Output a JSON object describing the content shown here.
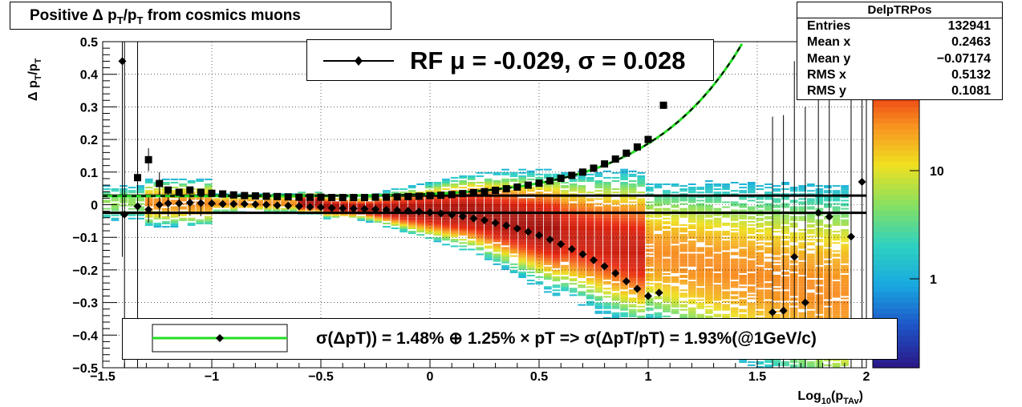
{
  "title": "Positive Δ p_T/p_T from cosmics muons",
  "title_parts": {
    "prefix": "Positive Δ p",
    "sub1": "T",
    "mid": "/p",
    "sub2": "T",
    "suffix": " from cosmics muons"
  },
  "stats": {
    "name": "DelpTRPos",
    "rows": [
      {
        "label": "Entries",
        "value": "132941"
      },
      {
        "label": "Mean x",
        "value": "0.2463"
      },
      {
        "label": "Mean y",
        "value": "−0.07174"
      },
      {
        "label": "RMS x",
        "value": "0.5132"
      },
      {
        "label": "RMS y",
        "value": "0.1081"
      }
    ]
  },
  "legend_fit": "RF μ = -0.029, σ =   0.028",
  "legend_resolution": "σ(ΔpT)) =  1.48% ⊕  1.25% × pT => σ(ΔpT/pT) =  1.93%(@1GeV/c)",
  "colors": {
    "profile_markers": "#000000",
    "fit_curve": "#22dd22",
    "palette": [
      "#2a1a8a",
      "#1e55c8",
      "#18a8e0",
      "#2ed2c0",
      "#88e060",
      "#f0e020",
      "#f89020",
      "#e82810",
      "#a8140e"
    ]
  },
  "chart_data": {
    "type": "heatmap",
    "xlabel": "Log10(pTAv)",
    "ylabel": "Δ pT/pT",
    "xlim": [
      -1.5,
      2
    ],
    "ylim": [
      -0.5,
      0.5
    ],
    "x_ticks": [
      "−1.5",
      "−1",
      "−0.5",
      "0",
      "0.5",
      "1",
      "1.5",
      "2"
    ],
    "y_ticks": [
      "−0.5",
      "−0.4",
      "−0.3",
      "−0.2",
      "−0.1",
      "0",
      "0.1",
      "0.2",
      "0.3",
      "0.4",
      "0.5"
    ],
    "colorbar_scale": "log",
    "colorbar_ticks": [
      "1",
      "10"
    ],
    "grid": true,
    "mean_profile": [
      {
        "x": -1.4,
        "y": -0.03
      },
      {
        "x": -1.34,
        "y": -0.005
      },
      {
        "x": -1.29,
        "y": -0.015
      },
      {
        "x": -1.24,
        "y": 0.0
      },
      {
        "x": -1.2,
        "y": 0.004
      },
      {
        "x": -1.15,
        "y": 0.004
      },
      {
        "x": -1.1,
        "y": 0.006
      },
      {
        "x": -1.05,
        "y": 0.005
      },
      {
        "x": -1.0,
        "y": 0.004
      },
      {
        "x": -0.95,
        "y": 0.002
      },
      {
        "x": -0.9,
        "y": 0.002
      },
      {
        "x": -0.85,
        "y": 0.002
      },
      {
        "x": -0.8,
        "y": 0.001
      },
      {
        "x": -0.75,
        "y": 0.0
      },
      {
        "x": -0.7,
        "y": -0.002
      },
      {
        "x": -0.65,
        "y": -0.003
      },
      {
        "x": -0.6,
        "y": -0.005
      },
      {
        "x": -0.55,
        "y": -0.007
      },
      {
        "x": -0.5,
        "y": -0.008
      },
      {
        "x": -0.45,
        "y": -0.01
      },
      {
        "x": -0.4,
        "y": -0.011
      },
      {
        "x": -0.35,
        "y": -0.012
      },
      {
        "x": -0.3,
        "y": -0.013
      },
      {
        "x": -0.25,
        "y": -0.014
      },
      {
        "x": -0.2,
        "y": -0.016
      },
      {
        "x": -0.15,
        "y": -0.017
      },
      {
        "x": -0.1,
        "y": -0.019
      },
      {
        "x": -0.05,
        "y": -0.021
      },
      {
        "x": 0.0,
        "y": -0.024
      },
      {
        "x": 0.05,
        "y": -0.027
      },
      {
        "x": 0.1,
        "y": -0.031
      },
      {
        "x": 0.15,
        "y": -0.036
      },
      {
        "x": 0.2,
        "y": -0.042
      },
      {
        "x": 0.25,
        "y": -0.048
      },
      {
        "x": 0.3,
        "y": -0.056
      },
      {
        "x": 0.35,
        "y": -0.064
      },
      {
        "x": 0.4,
        "y": -0.073
      },
      {
        "x": 0.45,
        "y": -0.083
      },
      {
        "x": 0.5,
        "y": -0.094
      },
      {
        "x": 0.55,
        "y": -0.107
      },
      {
        "x": 0.6,
        "y": -0.121
      },
      {
        "x": 0.65,
        "y": -0.136
      },
      {
        "x": 0.7,
        "y": -0.152
      },
      {
        "x": 0.75,
        "y": -0.17
      },
      {
        "x": 0.8,
        "y": -0.189
      },
      {
        "x": 0.85,
        "y": -0.21
      },
      {
        "x": 0.9,
        "y": -0.235
      },
      {
        "x": 0.95,
        "y": -0.258
      },
      {
        "x": 1.0,
        "y": -0.28
      },
      {
        "x": 1.05,
        "y": -0.27
      },
      {
        "x": -1.41,
        "y": 0.44
      },
      {
        "x": 1.57,
        "y": -0.33
      },
      {
        "x": 1.62,
        "y": -0.325
      },
      {
        "x": 1.67,
        "y": -0.16
      },
      {
        "x": 1.72,
        "y": -0.3
      },
      {
        "x": 1.78,
        "y": -0.025
      },
      {
        "x": 1.83,
        "y": -0.037
      },
      {
        "x": 1.93,
        "y": -0.098
      },
      {
        "x": 1.98,
        "y": 0.07
      }
    ],
    "rms_profile": [
      {
        "x": -1.34,
        "y": 0.083
      },
      {
        "x": -1.29,
        "y": 0.138
      },
      {
        "x": -1.24,
        "y": 0.065
      },
      {
        "x": -1.2,
        "y": 0.045
      },
      {
        "x": -1.15,
        "y": 0.038
      },
      {
        "x": -1.1,
        "y": 0.045
      },
      {
        "x": -1.05,
        "y": 0.038
      },
      {
        "x": -1.0,
        "y": 0.035
      },
      {
        "x": -0.95,
        "y": 0.033
      },
      {
        "x": -0.9,
        "y": 0.03
      },
      {
        "x": -0.85,
        "y": 0.028
      },
      {
        "x": -0.8,
        "y": 0.027
      },
      {
        "x": -0.75,
        "y": 0.026
      },
      {
        "x": -0.7,
        "y": 0.025
      },
      {
        "x": -0.65,
        "y": 0.024
      },
      {
        "x": -0.6,
        "y": 0.023
      },
      {
        "x": -0.55,
        "y": 0.023
      },
      {
        "x": -0.5,
        "y": 0.023
      },
      {
        "x": -0.45,
        "y": 0.022
      },
      {
        "x": -0.4,
        "y": 0.022
      },
      {
        "x": -0.35,
        "y": 0.022
      },
      {
        "x": -0.3,
        "y": 0.022
      },
      {
        "x": -0.25,
        "y": 0.023
      },
      {
        "x": -0.2,
        "y": 0.023
      },
      {
        "x": -0.15,
        "y": 0.024
      },
      {
        "x": -0.1,
        "y": 0.025
      },
      {
        "x": -0.05,
        "y": 0.026
      },
      {
        "x": 0.0,
        "y": 0.028
      },
      {
        "x": 0.05,
        "y": 0.029
      },
      {
        "x": 0.1,
        "y": 0.031
      },
      {
        "x": 0.15,
        "y": 0.034
      },
      {
        "x": 0.2,
        "y": 0.037
      },
      {
        "x": 0.25,
        "y": 0.04
      },
      {
        "x": 0.3,
        "y": 0.044
      },
      {
        "x": 0.35,
        "y": 0.049
      },
      {
        "x": 0.4,
        "y": 0.054
      },
      {
        "x": 0.45,
        "y": 0.06
      },
      {
        "x": 0.5,
        "y": 0.066
      },
      {
        "x": 0.55,
        "y": 0.073
      },
      {
        "x": 0.6,
        "y": 0.081
      },
      {
        "x": 0.65,
        "y": 0.09
      },
      {
        "x": 0.7,
        "y": 0.1
      },
      {
        "x": 0.75,
        "y": 0.112
      },
      {
        "x": 0.8,
        "y": 0.125
      },
      {
        "x": 0.85,
        "y": 0.14
      },
      {
        "x": 0.9,
        "y": 0.158
      },
      {
        "x": 0.95,
        "y": 0.177
      },
      {
        "x": 1.0,
        "y": 0.2
      },
      {
        "x": 1.07,
        "y": 0.305
      }
    ],
    "reference_lines": [
      0.028,
      -0.025
    ],
    "resolution_fit": {
      "constant_pct": 1.48,
      "linear_pct": 1.25,
      "at_1GeV_pct": 1.93
    },
    "fit_mean": -0.029,
    "fit_sigma": 0.028
  }
}
